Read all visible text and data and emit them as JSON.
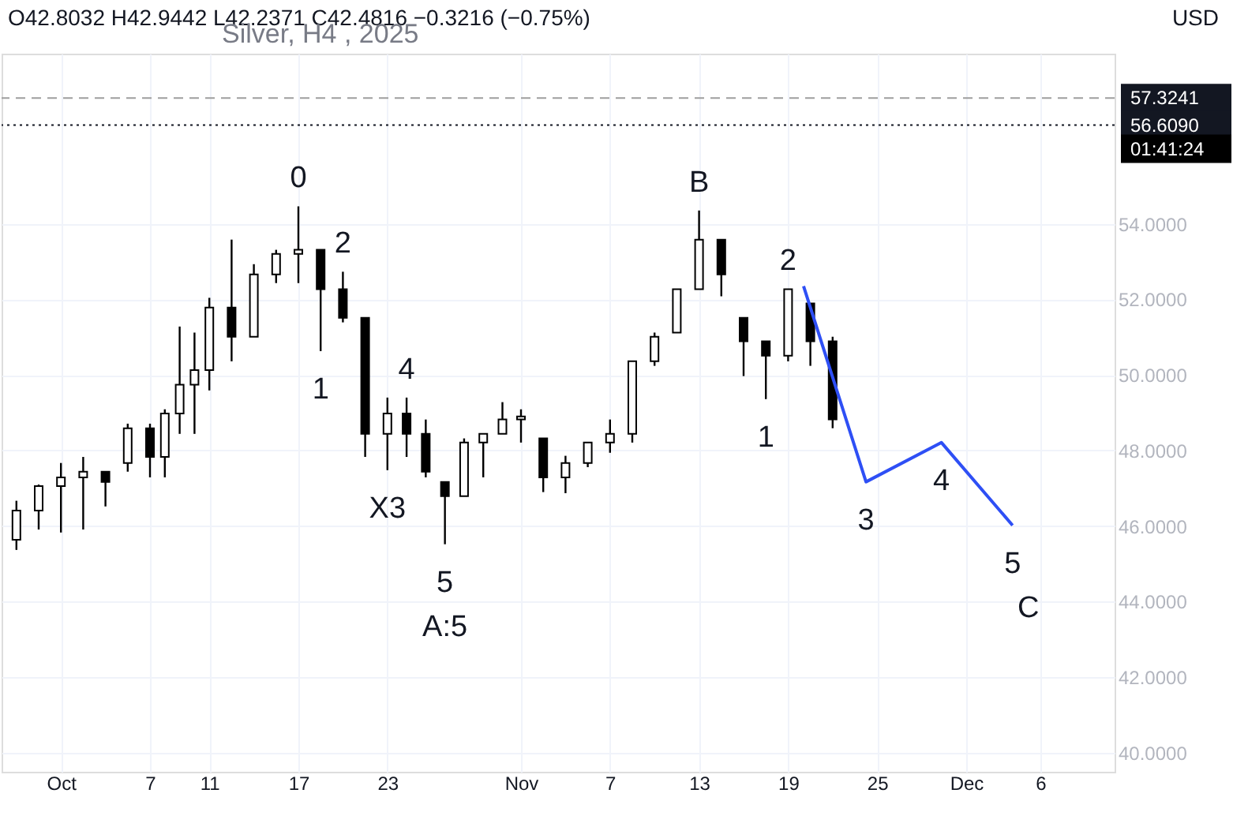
{
  "chart_data": {
    "type": "candlestick",
    "title": "Silver, H4 , 2025",
    "x": [
      "2025-09-28T00:00",
      "2025-09-29T12:00",
      "2025-10-01T00:00",
      "2025-10-02T12:00",
      "2025-10-04T00:00",
      "2025-10-05T12:00",
      "2025-10-07T00:00",
      "2025-10-08T00:00",
      "2025-10-09T00:00",
      "2025-10-10T00:00",
      "2025-10-11T00:00",
      "2025-10-12T12:00",
      "2025-10-14T00:00",
      "2025-10-15T12:00",
      "2025-10-17T00:00",
      "2025-10-18T12:00",
      "2025-10-20T00:00",
      "2025-10-21T12:00",
      "2025-10-23T00:00",
      "2025-10-24T07:00",
      "2025-10-25T14:00",
      "2025-10-26T21:00",
      "2025-10-28T04:00",
      "2025-10-29T11:00",
      "2025-10-30T18:00",
      "2025-11-01T00:00",
      "2025-11-02T12:00",
      "2025-11-04T00:00",
      "2025-11-05T12:00",
      "2025-11-07T00:00",
      "2025-11-08T12:00",
      "2025-11-10T00:00",
      "2025-11-11T12:00",
      "2025-11-13T00:00",
      "2025-11-14T12:00",
      "2025-11-16T00:00",
      "2025-11-17T12:00",
      "2025-11-19T00:00",
      "2025-11-20T12:00",
      "2025-11-22T00:00"
    ],
    "ohlc": [
      [
        45.64,
        46.67,
        45.37,
        46.41
      ],
      [
        46.41,
        47.1,
        45.91,
        47.06
      ],
      [
        47.06,
        47.67,
        45.83,
        47.29
      ],
      [
        47.29,
        47.83,
        45.91,
        47.44
      ],
      [
        47.44,
        47.44,
        46.52,
        47.17
      ],
      [
        47.67,
        48.71,
        47.44,
        48.59
      ],
      [
        48.59,
        48.71,
        47.29,
        47.83
      ],
      [
        47.83,
        49.09,
        47.29,
        48.98
      ],
      [
        48.98,
        51.28,
        48.44,
        49.74
      ],
      [
        49.74,
        51.12,
        48.44,
        50.13
      ],
      [
        50.13,
        52.04,
        49.59,
        51.78
      ],
      [
        51.78,
        53.58,
        50.36,
        51.01
      ],
      [
        51.01,
        52.93,
        51.01,
        52.66
      ],
      [
        52.66,
        53.31,
        52.43,
        53.2
      ],
      [
        53.2,
        54.46,
        52.43,
        53.31
      ],
      [
        53.31,
        53.31,
        50.63,
        52.27
      ],
      [
        52.27,
        52.73,
        51.39,
        51.51
      ],
      [
        51.51,
        51.51,
        47.83,
        48.44
      ],
      [
        48.44,
        49.4,
        47.48,
        48.98
      ],
      [
        48.98,
        49.4,
        47.83,
        48.44
      ],
      [
        48.44,
        48.82,
        47.29,
        47.44
      ],
      [
        47.17,
        47.17,
        45.52,
        46.79
      ],
      [
        46.79,
        48.32,
        46.79,
        48.21
      ],
      [
        48.21,
        48.44,
        47.29,
        48.44
      ],
      [
        48.44,
        49.28,
        48.44,
        48.82
      ],
      [
        48.82,
        49.09,
        48.21,
        48.9
      ],
      [
        48.32,
        48.32,
        46.9,
        47.29
      ],
      [
        47.29,
        47.86,
        46.87,
        47.67
      ],
      [
        47.67,
        48.21,
        47.56,
        48.21
      ],
      [
        48.21,
        48.82,
        47.94,
        48.44
      ],
      [
        48.44,
        50.36,
        48.21,
        50.36
      ],
      [
        50.36,
        51.12,
        50.24,
        51.01
      ],
      [
        51.12,
        52.27,
        51.12,
        52.27
      ],
      [
        52.27,
        54.35,
        52.27,
        53.58
      ],
      [
        53.58,
        53.58,
        52.08,
        52.66
      ],
      [
        51.51,
        51.51,
        49.97,
        50.89
      ],
      [
        50.89,
        50.89,
        49.36,
        50.51
      ],
      [
        50.51,
        52.27,
        50.36,
        52.27
      ],
      [
        51.89,
        51.89,
        50.24,
        50.89
      ],
      [
        50.89,
        51.01,
        48.59,
        48.82
      ]
    ],
    "series": [
      {
        "type": "line",
        "color": "#2e4ff5",
        "x": [
          "2025-11-20T01:00",
          "2025-11-24T06:00",
          "2025-11-29T08:00",
          "2025-12-04T03:00"
        ],
        "values": [
          52.35,
          47.17,
          48.21,
          46.02
        ]
      }
    ],
    "xlim": [
      "2025-09-27",
      "2025-12-11"
    ],
    "xticks": [
      {
        "value": "2025-10-01",
        "label": "Oct"
      },
      {
        "value": "2025-10-07",
        "label": "7"
      },
      {
        "value": "2025-10-11",
        "label": "11"
      },
      {
        "value": "2025-10-17",
        "label": "17"
      },
      {
        "value": "2025-10-23",
        "label": "23"
      },
      {
        "value": "2025-11-01",
        "label": "Nov"
      },
      {
        "value": "2025-11-07",
        "label": "7"
      },
      {
        "value": "2025-11-13",
        "label": "13"
      },
      {
        "value": "2025-11-19",
        "label": "19"
      },
      {
        "value": "2025-11-25",
        "label": "25"
      },
      {
        "value": "2025-12-01",
        "label": "Dec"
      },
      {
        "value": "2025-12-06",
        "label": "6"
      }
    ],
    "ylim": [
      39.5,
      58.5
    ],
    "yticks": [
      {
        "value": 40,
        "label": "40.0000"
      },
      {
        "value": 42,
        "label": "42.0000"
      },
      {
        "value": 44,
        "label": "44.0000"
      },
      {
        "value": 46,
        "label": "46.0000"
      },
      {
        "value": 48,
        "label": "48.0000"
      },
      {
        "value": 50,
        "label": "50.0000"
      },
      {
        "value": 52,
        "label": "52.0000"
      },
      {
        "value": 54,
        "label": "54.0000"
      }
    ],
    "ref_lines": [
      {
        "axis": "y",
        "value": 57.3241,
        "label": "57.3241",
        "line_style": "dashed",
        "color": "#9e9e9e"
      },
      {
        "axis": "y",
        "value": 56.609,
        "label": "56.6090",
        "line_style": "dotted",
        "color": "#131722"
      }
    ],
    "annotations": [
      "O42.8032 H42.9442 L42.2371 C42.4816 −0.3216 (−0.75%)",
      "USD",
      "01:41:24",
      {
        "text": "0",
        "x": "2025-10-17T00:00",
        "y": 54.46
      },
      {
        "text": "B",
        "x": "2025-11-13T00:00",
        "y": 54.35
      },
      {
        "text": "2",
        "x": "2025-10-20T00:00",
        "y": 52.73
      },
      {
        "text": "1",
        "x": "2025-10-18T12:00",
        "y": 50.63
      },
      {
        "text": "4",
        "x": "2025-10-24T07:00",
        "y": 49.4
      },
      {
        "text": "X3",
        "x": "2025-10-23T00:00",
        "y": 47.48
      },
      {
        "text": "5",
        "x": "2025-10-26T21:00",
        "y": 45.52
      },
      {
        "text": "A:5",
        "x": "2025-10-26T21:00",
        "y": 45.52
      },
      {
        "text": "2",
        "x": "2025-11-19T00:00",
        "y": 52.27
      },
      {
        "text": "1",
        "x": "2025-11-17T12:00",
        "y": 49.36
      },
      {
        "text": "3",
        "x": "2025-11-24T06:00",
        "y": 47.17
      },
      {
        "text": "4",
        "x": "2025-11-29T08:00",
        "y": 48.21
      },
      {
        "text": "5",
        "x": "2025-12-04T03:00",
        "y": 46.02
      },
      {
        "text": "C",
        "x": "2025-12-04T03:00",
        "y": 46.02
      }
    ],
    "grid": true
  }
}
